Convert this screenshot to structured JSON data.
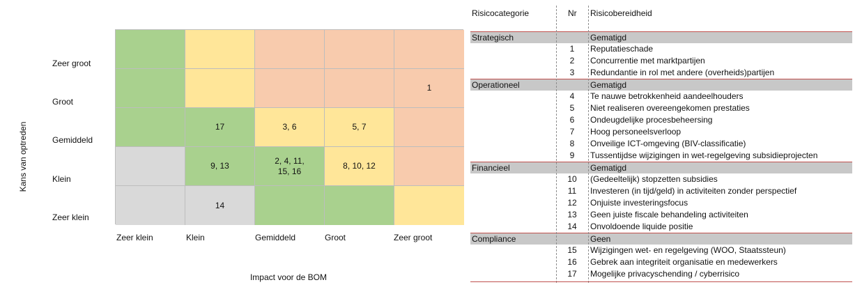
{
  "colors": {
    "green": "#a9d18e",
    "yellow": "#ffe699",
    "orange": "#f8cbad",
    "gray": "#d9d9d9",
    "category_bg": "#c8c8c8",
    "rule": "#c0504d"
  },
  "matrix": {
    "y_axis_title": "Kans van optreden",
    "x_axis_title": "Impact voor de BOM",
    "y_labels": [
      "Zeer groot",
      "Groot",
      "Gemiddeld",
      "Klein",
      "Zeer klein"
    ],
    "x_labels": [
      "Zeer klein",
      "Klein",
      "Gemiddeld",
      "Groot",
      "Zeer groot"
    ],
    "rows": [
      [
        {
          "color": "green",
          "text": ""
        },
        {
          "color": "yellow",
          "text": ""
        },
        {
          "color": "orange",
          "text": ""
        },
        {
          "color": "orange",
          "text": ""
        },
        {
          "color": "orange",
          "text": ""
        }
      ],
      [
        {
          "color": "green",
          "text": ""
        },
        {
          "color": "yellow",
          "text": ""
        },
        {
          "color": "orange",
          "text": ""
        },
        {
          "color": "orange",
          "text": ""
        },
        {
          "color": "orange",
          "text": "1"
        }
      ],
      [
        {
          "color": "green",
          "text": ""
        },
        {
          "color": "green",
          "text": "17"
        },
        {
          "color": "yellow",
          "text": "3, 6"
        },
        {
          "color": "yellow",
          "text": "5, 7"
        },
        {
          "color": "orange",
          "text": ""
        }
      ],
      [
        {
          "color": "gray",
          "text": ""
        },
        {
          "color": "green",
          "text": "9, 13"
        },
        {
          "color": "green",
          "text": "2, 4, 11,\n15, 16"
        },
        {
          "color": "yellow",
          "text": "8, 10, 12"
        },
        {
          "color": "orange",
          "text": ""
        }
      ],
      [
        {
          "color": "gray",
          "text": ""
        },
        {
          "color": "gray",
          "text": "14"
        },
        {
          "color": "green",
          "text": ""
        },
        {
          "color": "green",
          "text": ""
        },
        {
          "color": "yellow",
          "text": ""
        }
      ]
    ]
  },
  "table": {
    "headers": {
      "category": "Risicocategorie",
      "nr": "Nr",
      "appetite": "Risicobereidheid"
    },
    "categories": [
      {
        "name": "Strategisch",
        "appetite": "Gematigd",
        "items": [
          {
            "nr": "1",
            "text": "Reputatieschade"
          },
          {
            "nr": "2",
            "text": "Concurrentie met marktpartijen"
          },
          {
            "nr": "3",
            "text": "Redundantie in rol met andere (overheids)partijen"
          }
        ]
      },
      {
        "name": "Operationeel",
        "appetite": "Gematigd",
        "items": [
          {
            "nr": "4",
            "text": "Te nauwe betrokkenheid aandeelhouders"
          },
          {
            "nr": "5",
            "text": "Niet realiseren overeengekomen prestaties"
          },
          {
            "nr": "6",
            "text": "Ondeugdelijke procesbeheersing"
          },
          {
            "nr": "7",
            "text": "Hoog personeelsverloop"
          },
          {
            "nr": "8",
            "text": "Onveilige ICT-omgeving (BIV-classificatie)"
          },
          {
            "nr": "9",
            "text": "Tussentijdse wijzigingen in wet-regelgeving subsidieprojecten"
          }
        ]
      },
      {
        "name": "Financieel",
        "appetite": "Gematigd",
        "items": [
          {
            "nr": "10",
            "text": "(Gedeeltelijk) stopzetten subsidies"
          },
          {
            "nr": "11",
            "text": "Investeren (in tijd/geld) in activiteiten zonder perspectief"
          },
          {
            "nr": "12",
            "text": "Onjuiste investeringsfocus"
          },
          {
            "nr": "13",
            "text": "Geen juiste fiscale behandeling activiteiten"
          },
          {
            "nr": "14",
            "text": "Onvoldoende liquide positie"
          }
        ]
      },
      {
        "name": "Compliance",
        "appetite": "Geen",
        "items": [
          {
            "nr": "15",
            "text": "Wijzigingen wet- en regelgeving (WOO, Staatssteun)"
          },
          {
            "nr": "16",
            "text": "Gebrek aan integriteit organisatie en medewerkers"
          },
          {
            "nr": "17",
            "text": "Mogelijke privacyschending / cyberrisico"
          }
        ]
      }
    ]
  }
}
